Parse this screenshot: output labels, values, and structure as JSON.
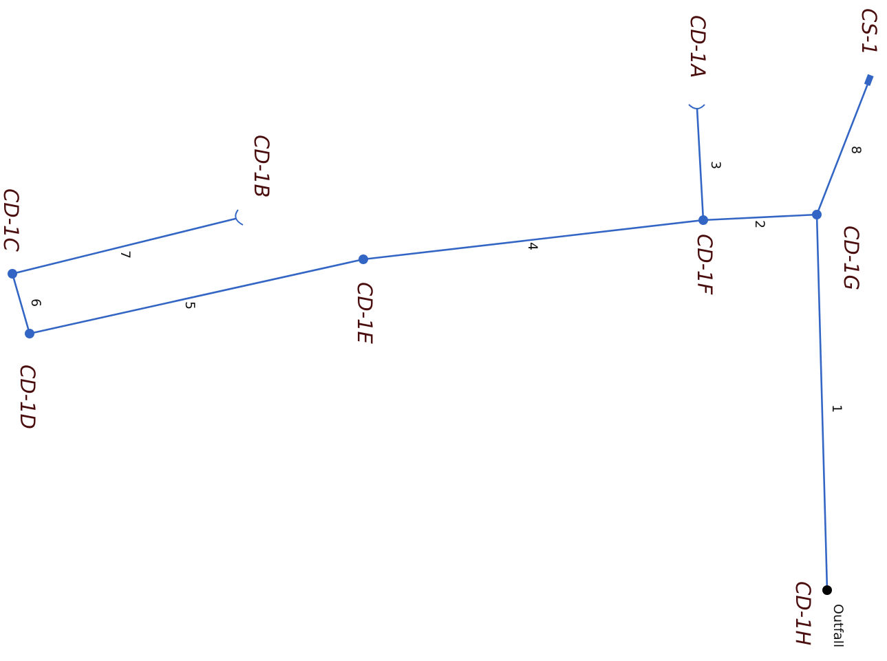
{
  "nodes": {
    "cs_1": "CS-1",
    "cd_1a": "CD-1A",
    "cd_1b": "CD-1B",
    "cd_1c": "CD-1C",
    "cd_1d": "CD-1D",
    "cd_1e": "CD-1E",
    "cd_1f": "CD-1F",
    "cd_1g": "CD-1G",
    "cd_1h": "CD-1H"
  },
  "outfall_label": "Outfall",
  "pipes": {
    "p1": "1",
    "p2": "2",
    "p3": "3",
    "p4": "4",
    "p5": "5",
    "p6": "6",
    "p7": "7",
    "p8": "8"
  },
  "colors": {
    "pipe": "#3366c4",
    "node_label": "#4a0d0d",
    "outfall": "#000000"
  }
}
